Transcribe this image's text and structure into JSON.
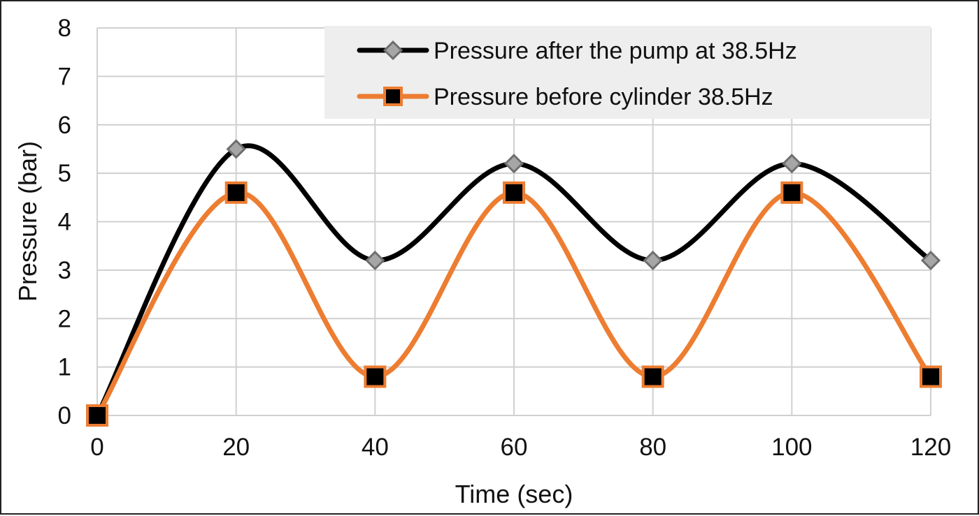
{
  "chart_data": {
    "type": "line",
    "title": "",
    "xlabel": "Time (sec)",
    "ylabel": "Pressure (bar)",
    "x": [
      0,
      20,
      40,
      60,
      80,
      100,
      120
    ],
    "xlim": [
      0,
      120
    ],
    "ylim": [
      0,
      8
    ],
    "xticks": [
      0,
      20,
      40,
      60,
      80,
      100,
      120
    ],
    "yticks": [
      0,
      1,
      2,
      3,
      4,
      5,
      6,
      7,
      8
    ],
    "grid": true,
    "smooth": true,
    "legend_position": "top-right",
    "series": [
      {
        "name": "Pressure after the pump at 38.5Hz",
        "values": [
          0,
          5.5,
          3.2,
          5.2,
          3.2,
          5.2,
          3.2
        ],
        "line_color": "#000000",
        "marker": "diamond",
        "marker_color": "#a6a6a6"
      },
      {
        "name": "Pressure before cylinder 38.5Hz",
        "values": [
          0,
          4.6,
          0.8,
          4.6,
          0.8,
          4.6,
          0.8
        ],
        "line_color": "#ed7d31",
        "marker": "square",
        "marker_color": "#000000"
      }
    ]
  }
}
